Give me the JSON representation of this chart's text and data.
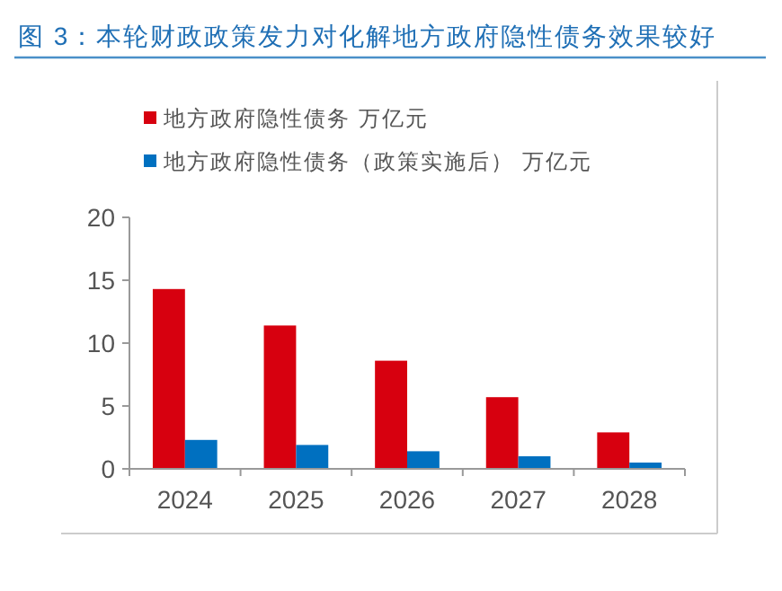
{
  "chart_data": {
    "type": "bar",
    "title": "图 3：本轮财政政策发力对化解地方政府隐性债务效果较好",
    "categories": [
      "2024",
      "2025",
      "2026",
      "2027",
      "2028"
    ],
    "series": [
      {
        "name": "地方政府隐性债务 万亿元",
        "color": "#d7000f",
        "values": [
          14.3,
          11.4,
          8.6,
          5.7,
          2.9
        ]
      },
      {
        "name": "地方政府隐性债务（政策实施后） 万亿元",
        "color": "#0070c0",
        "values": [
          2.3,
          1.9,
          1.4,
          1.0,
          0.5
        ]
      }
    ],
    "ylim": [
      0,
      20
    ],
    "yticks": [
      0,
      5,
      10,
      15,
      20
    ],
    "grid": false,
    "legend": "top left"
  }
}
